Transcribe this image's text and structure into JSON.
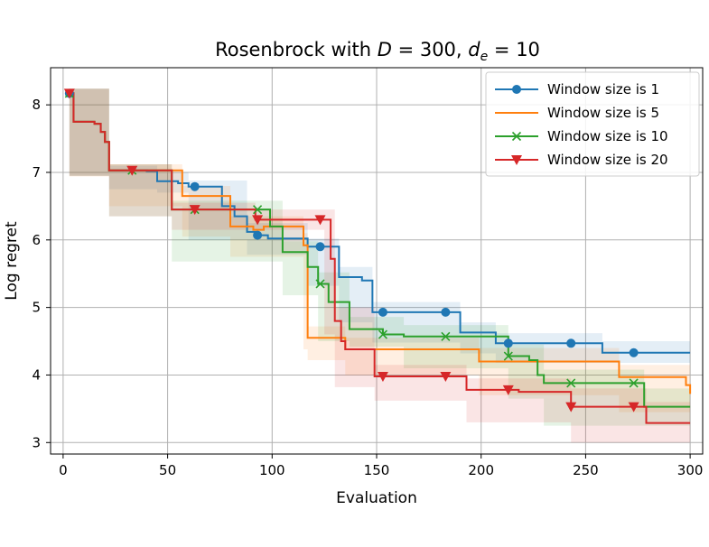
{
  "chart_data": {
    "type": "line",
    "title": "Rosenbrock with D = 300, d_e = 10",
    "title_parts": {
      "prefix": "Rosenbrock with ",
      "D": "D",
      "D_value": " = 300, ",
      "d": "d",
      "d_sub": "e",
      "de_value": " = 10"
    },
    "xlabel": "Evaluation",
    "ylabel": "Log regret",
    "xlim": [
      -6,
      306
    ],
    "ylim": [
      2.83,
      8.55
    ],
    "xticks": [
      0,
      50,
      100,
      150,
      200,
      250,
      300
    ],
    "yticks": [
      3,
      4,
      5,
      6,
      7,
      8
    ],
    "grid": true,
    "legend_position": "top-right",
    "series": [
      {
        "name": "Window size is 1",
        "color": "#1f77b4",
        "marker": "circle",
        "steps": [
          [
            3,
            8.17
          ],
          [
            5,
            7.75
          ],
          [
            15,
            7.72
          ],
          [
            18,
            7.6
          ],
          [
            20,
            7.45
          ],
          [
            22,
            7.03
          ],
          [
            40,
            7.02
          ],
          [
            45,
            6.87
          ],
          [
            55,
            6.84
          ],
          [
            60,
            6.79
          ],
          [
            76,
            6.5
          ],
          [
            82,
            6.35
          ],
          [
            88,
            6.12
          ],
          [
            92,
            6.07
          ],
          [
            98,
            6.02
          ],
          [
            108,
            6.02
          ],
          [
            117,
            5.9
          ],
          [
            128,
            5.9
          ],
          [
            132,
            5.45
          ],
          [
            138,
            5.45
          ],
          [
            143,
            5.4
          ],
          [
            148,
            4.93
          ],
          [
            188,
            4.93
          ],
          [
            190,
            4.63
          ],
          [
            204,
            4.63
          ],
          [
            207,
            4.47
          ],
          [
            255,
            4.47
          ],
          [
            258,
            4.33
          ],
          [
            300,
            4.33
          ]
        ],
        "band": [
          [
            3,
            8.1,
            8.24
          ],
          [
            22,
            6.95,
            7.1
          ],
          [
            45,
            6.75,
            7.0
          ],
          [
            60,
            6.7,
            6.88
          ],
          [
            88,
            6.0,
            6.25
          ],
          [
            117,
            5.78,
            6.02
          ],
          [
            132,
            5.32,
            5.6
          ],
          [
            148,
            4.78,
            5.08
          ],
          [
            190,
            4.48,
            4.78
          ],
          [
            207,
            4.32,
            4.62
          ],
          [
            258,
            4.18,
            4.5
          ],
          [
            300,
            4.18,
            4.5
          ]
        ],
        "marker_x": [
          3,
          63,
          93,
          123,
          153,
          183,
          213,
          243,
          273
        ]
      },
      {
        "name": "Window size is 5",
        "color": "#ff7f0e",
        "marker": "none",
        "steps": [
          [
            3,
            8.17
          ],
          [
            5,
            7.75
          ],
          [
            15,
            7.72
          ],
          [
            18,
            7.6
          ],
          [
            20,
            7.45
          ],
          [
            22,
            7.03
          ],
          [
            55,
            7.03
          ],
          [
            57,
            6.65
          ],
          [
            78,
            6.65
          ],
          [
            80,
            6.2
          ],
          [
            88,
            6.2
          ],
          [
            91,
            6.15
          ],
          [
            96,
            6.2
          ],
          [
            113,
            6.2
          ],
          [
            115,
            5.92
          ],
          [
            117,
            4.55
          ],
          [
            133,
            4.55
          ],
          [
            135,
            4.38
          ],
          [
            197,
            4.38
          ],
          [
            199,
            4.2
          ],
          [
            263,
            4.2
          ],
          [
            266,
            3.97
          ],
          [
            295,
            3.97
          ],
          [
            298,
            3.85
          ],
          [
            300,
            3.72
          ]
        ],
        "band": [
          [
            3,
            8.1,
            8.24
          ],
          [
            22,
            6.94,
            7.12
          ],
          [
            57,
            6.5,
            6.8
          ],
          [
            80,
            6.05,
            6.35
          ],
          [
            115,
            5.75,
            6.1
          ],
          [
            117,
            4.38,
            4.72
          ],
          [
            135,
            4.22,
            4.55
          ],
          [
            199,
            4.0,
            4.4
          ],
          [
            266,
            3.7,
            4.15
          ],
          [
            300,
            3.45,
            3.95
          ]
        ],
        "marker_x": []
      },
      {
        "name": "Window size is 10",
        "color": "#2ca02c",
        "marker": "x",
        "steps": [
          [
            3,
            8.17
          ],
          [
            5,
            7.75
          ],
          [
            15,
            7.72
          ],
          [
            18,
            7.6
          ],
          [
            20,
            7.45
          ],
          [
            22,
            7.03
          ],
          [
            50,
            7.03
          ],
          [
            52,
            6.45
          ],
          [
            97,
            6.45
          ],
          [
            99,
            6.2
          ],
          [
            103,
            6.2
          ],
          [
            105,
            5.82
          ],
          [
            115,
            5.82
          ],
          [
            117,
            5.6
          ],
          [
            120,
            5.6
          ],
          [
            122,
            5.35
          ],
          [
            125,
            5.35
          ],
          [
            127,
            5.08
          ],
          [
            133,
            5.08
          ],
          [
            137,
            4.68
          ],
          [
            150,
            4.68
          ],
          [
            153,
            4.6
          ],
          [
            160,
            4.6
          ],
          [
            163,
            4.57
          ],
          [
            210,
            4.57
          ],
          [
            213,
            4.28
          ],
          [
            220,
            4.28
          ],
          [
            223,
            4.22
          ],
          [
            227,
            4.0
          ],
          [
            230,
            3.88
          ],
          [
            276,
            3.88
          ],
          [
            278,
            3.53
          ],
          [
            300,
            3.53
          ]
        ],
        "band": [
          [
            3,
            8.1,
            8.24
          ],
          [
            22,
            6.95,
            7.12
          ],
          [
            52,
            6.35,
            6.58
          ],
          [
            105,
            5.68,
            5.98
          ],
          [
            122,
            5.18,
            5.52
          ],
          [
            137,
            4.5,
            4.86
          ],
          [
            163,
            4.42,
            4.74
          ],
          [
            213,
            4.1,
            4.45
          ],
          [
            230,
            3.65,
            4.08
          ],
          [
            278,
            3.25,
            3.8
          ],
          [
            300,
            3.25,
            3.8
          ]
        ],
        "marker_x": [
          3,
          33,
          63,
          93,
          123,
          153,
          183,
          213,
          243,
          273
        ]
      },
      {
        "name": "Window size is 20",
        "color": "#d62728",
        "marker": "triangle-down",
        "steps": [
          [
            3,
            8.17
          ],
          [
            5,
            7.75
          ],
          [
            15,
            7.72
          ],
          [
            18,
            7.6
          ],
          [
            20,
            7.45
          ],
          [
            22,
            7.03
          ],
          [
            50,
            7.03
          ],
          [
            52,
            6.45
          ],
          [
            90,
            6.45
          ],
          [
            92,
            6.3
          ],
          [
            125,
            6.3
          ],
          [
            128,
            5.72
          ],
          [
            130,
            4.8
          ],
          [
            133,
            4.5
          ],
          [
            135,
            4.38
          ],
          [
            147,
            4.38
          ],
          [
            149,
            3.98
          ],
          [
            190,
            3.98
          ],
          [
            193,
            3.78
          ],
          [
            215,
            3.78
          ],
          [
            218,
            3.75
          ],
          [
            240,
            3.75
          ],
          [
            243,
            3.53
          ],
          [
            277,
            3.53
          ],
          [
            279,
            3.29
          ],
          [
            300,
            3.29
          ]
        ],
        "band": [
          [
            3,
            8.1,
            8.24
          ],
          [
            22,
            6.95,
            7.12
          ],
          [
            52,
            6.35,
            6.55
          ],
          [
            92,
            6.15,
            6.45
          ],
          [
            125,
            6.15,
            6.45
          ],
          [
            130,
            4.6,
            5.0
          ],
          [
            149,
            3.82,
            4.15
          ],
          [
            193,
            3.62,
            3.95
          ],
          [
            243,
            3.3,
            3.8
          ],
          [
            279,
            3.0,
            3.6
          ],
          [
            300,
            3.0,
            3.6
          ]
        ],
        "marker_x": [
          3,
          33,
          63,
          93,
          123,
          153,
          183,
          213,
          243,
          273
        ]
      }
    ]
  }
}
